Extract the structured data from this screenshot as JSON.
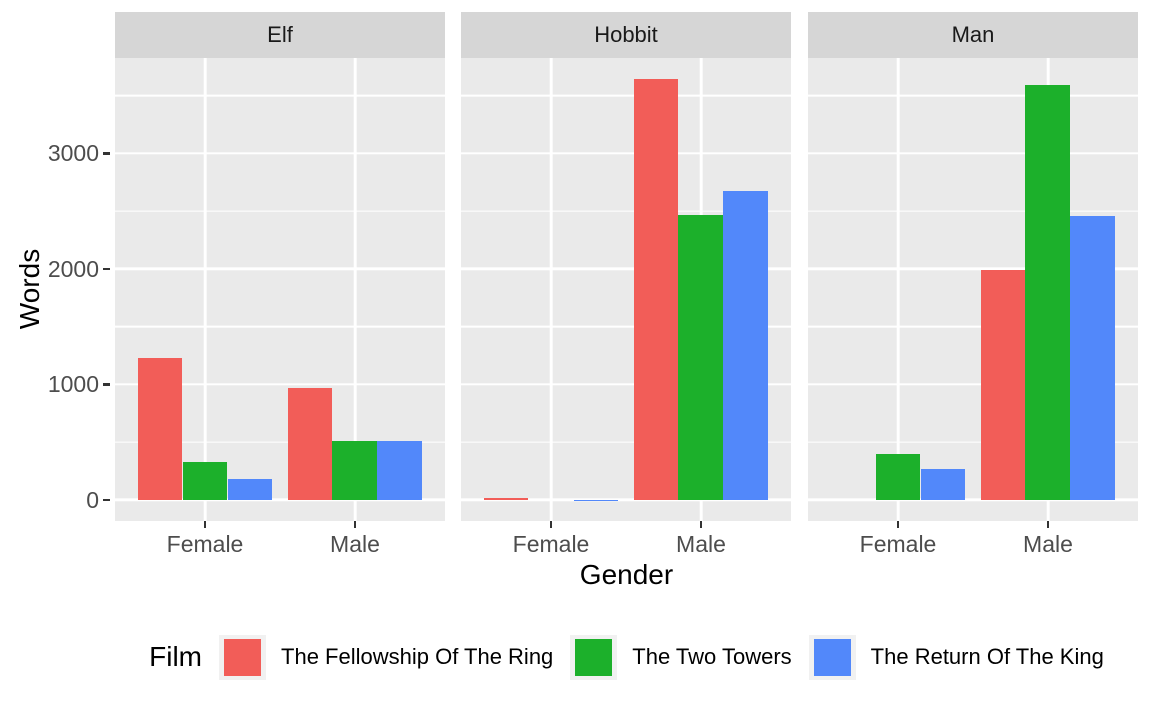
{
  "chart_data": {
    "type": "bar",
    "facets": [
      {
        "label": "Elf",
        "values": [
          [
            1229,
            331,
            183
          ],
          [
            971,
            513,
            510
          ]
        ]
      },
      {
        "label": "Hobbit",
        "values": [
          [
            14,
            0,
            2
          ],
          [
            3644,
            2463,
            2673
          ]
        ]
      },
      {
        "label": "Man",
        "values": [
          [
            0,
            401,
            268
          ],
          [
            1995,
            3589,
            2459
          ]
        ]
      }
    ],
    "categories": [
      "Female",
      "Male"
    ],
    "series": [
      {
        "name": "The Fellowship Of The Ring",
        "color": "#F25D58"
      },
      {
        "name": "The Two Towers",
        "color": "#1CB02B"
      },
      {
        "name": "The Return Of The King",
        "color": "#5288FA"
      }
    ],
    "xlabel": "Gender",
    "ylabel": "Words",
    "legend_title": "Film",
    "legend_position": "bottom",
    "y_ticks": [
      0,
      1000,
      2000,
      3000
    ],
    "y_minor_ticks": [
      500,
      1500,
      2500,
      3500
    ],
    "ylim": [
      -182,
      3826
    ],
    "grid": true
  },
  "style": {
    "background": "#FFFFFF",
    "panel_bg": "#EAEAEA",
    "strip_bg": "#D6D6D6",
    "grid_color": "#FFFFFF",
    "tick_label_color": "#4D4D4D",
    "axis_title_color": "#000000",
    "strip_text_color": "#1A1A1A",
    "tick_mark_color": "#333333",
    "legend_key_bg": "#F1F1F1"
  }
}
